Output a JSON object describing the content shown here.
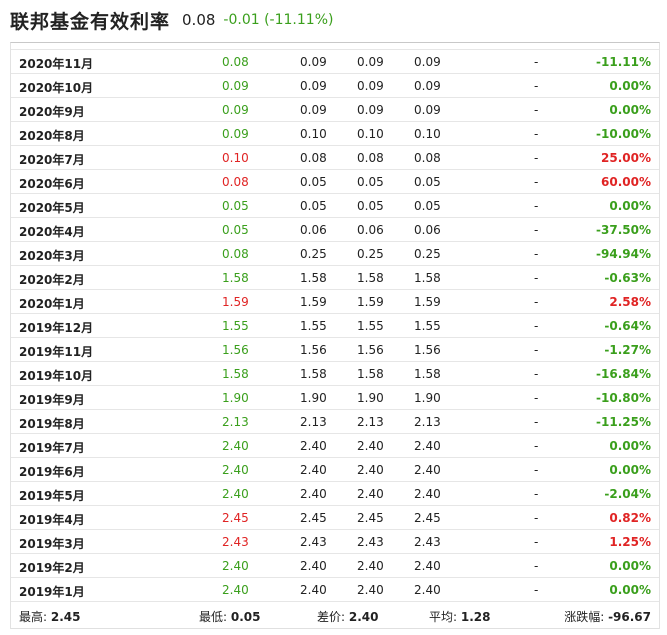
{
  "header": {
    "title": "联邦基金有效利率",
    "price": "0.08",
    "change": "-0.01 (-11.11%)"
  },
  "colors": {
    "up": "#e02424",
    "down": "#3a9f1c"
  },
  "rows": [
    {
      "date": "2020年11月",
      "close": "0.08",
      "open": "0.09",
      "high": "0.09",
      "low": "0.09",
      "volume": "-",
      "pct": "-11.11%",
      "close_dir": "down",
      "pct_dir": "down"
    },
    {
      "date": "2020年10月",
      "close": "0.09",
      "open": "0.09",
      "high": "0.09",
      "low": "0.09",
      "volume": "-",
      "pct": "0.00%",
      "close_dir": "down",
      "pct_dir": "down"
    },
    {
      "date": "2020年9月",
      "close": "0.09",
      "open": "0.09",
      "high": "0.09",
      "low": "0.09",
      "volume": "-",
      "pct": "0.00%",
      "close_dir": "down",
      "pct_dir": "down"
    },
    {
      "date": "2020年8月",
      "close": "0.09",
      "open": "0.10",
      "high": "0.10",
      "low": "0.10",
      "volume": "-",
      "pct": "-10.00%",
      "close_dir": "down",
      "pct_dir": "down"
    },
    {
      "date": "2020年7月",
      "close": "0.10",
      "open": "0.08",
      "high": "0.08",
      "low": "0.08",
      "volume": "-",
      "pct": "25.00%",
      "close_dir": "up",
      "pct_dir": "up"
    },
    {
      "date": "2020年6月",
      "close": "0.08",
      "open": "0.05",
      "high": "0.05",
      "low": "0.05",
      "volume": "-",
      "pct": "60.00%",
      "close_dir": "up",
      "pct_dir": "up"
    },
    {
      "date": "2020年5月",
      "close": "0.05",
      "open": "0.05",
      "high": "0.05",
      "low": "0.05",
      "volume": "-",
      "pct": "0.00%",
      "close_dir": "down",
      "pct_dir": "down"
    },
    {
      "date": "2020年4月",
      "close": "0.05",
      "open": "0.06",
      "high": "0.06",
      "low": "0.06",
      "volume": "-",
      "pct": "-37.50%",
      "close_dir": "down",
      "pct_dir": "down"
    },
    {
      "date": "2020年3月",
      "close": "0.08",
      "open": "0.25",
      "high": "0.25",
      "low": "0.25",
      "volume": "-",
      "pct": "-94.94%",
      "close_dir": "down",
      "pct_dir": "down"
    },
    {
      "date": "2020年2月",
      "close": "1.58",
      "open": "1.58",
      "high": "1.58",
      "low": "1.58",
      "volume": "-",
      "pct": "-0.63%",
      "close_dir": "down",
      "pct_dir": "down"
    },
    {
      "date": "2020年1月",
      "close": "1.59",
      "open": "1.59",
      "high": "1.59",
      "low": "1.59",
      "volume": "-",
      "pct": "2.58%",
      "close_dir": "up",
      "pct_dir": "up"
    },
    {
      "date": "2019年12月",
      "close": "1.55",
      "open": "1.55",
      "high": "1.55",
      "low": "1.55",
      "volume": "-",
      "pct": "-0.64%",
      "close_dir": "down",
      "pct_dir": "down"
    },
    {
      "date": "2019年11月",
      "close": "1.56",
      "open": "1.56",
      "high": "1.56",
      "low": "1.56",
      "volume": "-",
      "pct": "-1.27%",
      "close_dir": "down",
      "pct_dir": "down"
    },
    {
      "date": "2019年10月",
      "close": "1.58",
      "open": "1.58",
      "high": "1.58",
      "low": "1.58",
      "volume": "-",
      "pct": "-16.84%",
      "close_dir": "down",
      "pct_dir": "down"
    },
    {
      "date": "2019年9月",
      "close": "1.90",
      "open": "1.90",
      "high": "1.90",
      "low": "1.90",
      "volume": "-",
      "pct": "-10.80%",
      "close_dir": "down",
      "pct_dir": "down"
    },
    {
      "date": "2019年8月",
      "close": "2.13",
      "open": "2.13",
      "high": "2.13",
      "low": "2.13",
      "volume": "-",
      "pct": "-11.25%",
      "close_dir": "down",
      "pct_dir": "down"
    },
    {
      "date": "2019年7月",
      "close": "2.40",
      "open": "2.40",
      "high": "2.40",
      "low": "2.40",
      "volume": "-",
      "pct": "0.00%",
      "close_dir": "down",
      "pct_dir": "down"
    },
    {
      "date": "2019年6月",
      "close": "2.40",
      "open": "2.40",
      "high": "2.40",
      "low": "2.40",
      "volume": "-",
      "pct": "0.00%",
      "close_dir": "down",
      "pct_dir": "down"
    },
    {
      "date": "2019年5月",
      "close": "2.40",
      "open": "2.40",
      "high": "2.40",
      "low": "2.40",
      "volume": "-",
      "pct": "-2.04%",
      "close_dir": "down",
      "pct_dir": "down"
    },
    {
      "date": "2019年4月",
      "close": "2.45",
      "open": "2.45",
      "high": "2.45",
      "low": "2.45",
      "volume": "-",
      "pct": "0.82%",
      "close_dir": "up",
      "pct_dir": "up"
    },
    {
      "date": "2019年3月",
      "close": "2.43",
      "open": "2.43",
      "high": "2.43",
      "low": "2.43",
      "volume": "-",
      "pct": "1.25%",
      "close_dir": "up",
      "pct_dir": "up"
    },
    {
      "date": "2019年2月",
      "close": "2.40",
      "open": "2.40",
      "high": "2.40",
      "low": "2.40",
      "volume": "-",
      "pct": "0.00%",
      "close_dir": "down",
      "pct_dir": "down"
    },
    {
      "date": "2019年1月",
      "close": "2.40",
      "open": "2.40",
      "high": "2.40",
      "low": "2.40",
      "volume": "-",
      "pct": "0.00%",
      "close_dir": "down",
      "pct_dir": "down"
    }
  ],
  "summary": {
    "high_label": "最高:",
    "high_value": "2.45",
    "low_label": "最低:",
    "low_value": "0.05",
    "diff_label": "差价:",
    "diff_value": "2.40",
    "avg_label": "平均:",
    "avg_value": "1.28",
    "change_label": "涨跌幅:",
    "change_value": "-96.67"
  }
}
